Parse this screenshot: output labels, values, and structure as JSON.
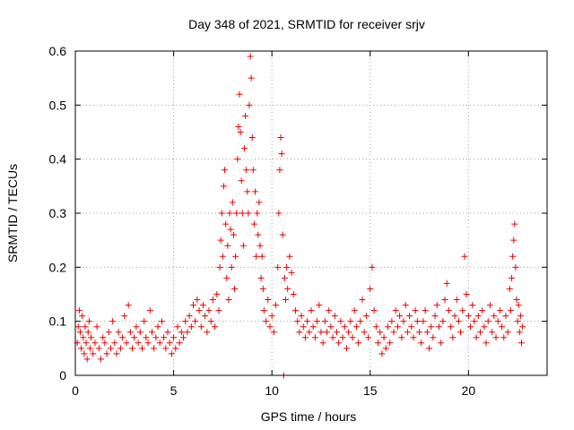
{
  "chart_data": {
    "type": "scatter",
    "title": "Day 348 of 2021, SRMTID for receiver srjv",
    "xlabel": "GPS time / hours",
    "ylabel": "SRMTID / TECUs",
    "xlim": [
      0,
      24
    ],
    "ylim": [
      0,
      0.6
    ],
    "xticks": [
      0,
      5,
      10,
      15,
      20
    ],
    "xtick_labels": [
      "0",
      "5",
      "10",
      "15",
      "20"
    ],
    "yticks": [
      0,
      0.1,
      0.2,
      0.3,
      0.4,
      0.5,
      0.6
    ],
    "ytick_labels": [
      "0",
      "0.1",
      "0.2",
      "0.3",
      "0.4",
      "0.5",
      "0.6"
    ],
    "grid": true,
    "marker": "plus",
    "series_color": "#ee0000",
    "series": [
      {
        "name": "srjv",
        "points": [
          [
            0.1,
            0.06
          ],
          [
            0.15,
            0.09
          ],
          [
            0.2,
            0.12
          ],
          [
            0.25,
            0.08
          ],
          [
            0.3,
            0.05
          ],
          [
            0.35,
            0.11
          ],
          [
            0.4,
            0.07
          ],
          [
            0.45,
            0.04
          ],
          [
            0.5,
            0.09
          ],
          [
            0.55,
            0.06
          ],
          [
            0.6,
            0.03
          ],
          [
            0.65,
            0.08
          ],
          [
            0.7,
            0.1
          ],
          [
            0.75,
            0.05
          ],
          [
            0.8,
            0.07
          ],
          [
            0.9,
            0.04
          ],
          [
            1.0,
            0.06
          ],
          [
            1.1,
            0.09
          ],
          [
            1.2,
            0.05
          ],
          [
            1.3,
            0.03
          ],
          [
            1.4,
            0.07
          ],
          [
            1.5,
            0.06
          ],
          [
            1.6,
            0.04
          ],
          [
            1.7,
            0.08
          ],
          [
            1.8,
            0.05
          ],
          [
            1.9,
            0.1
          ],
          [
            2.0,
            0.06
          ],
          [
            2.1,
            0.04
          ],
          [
            2.2,
            0.08
          ],
          [
            2.3,
            0.05
          ],
          [
            2.4,
            0.07
          ],
          [
            2.5,
            0.11
          ],
          [
            2.6,
            0.06
          ],
          [
            2.7,
            0.13
          ],
          [
            2.8,
            0.08
          ],
          [
            2.9,
            0.05
          ],
          [
            3.0,
            0.07
          ],
          [
            3.1,
            0.09
          ],
          [
            3.2,
            0.06
          ],
          [
            3.3,
            0.08
          ],
          [
            3.4,
            0.05
          ],
          [
            3.5,
            0.1
          ],
          [
            3.6,
            0.07
          ],
          [
            3.7,
            0.06
          ],
          [
            3.8,
            0.12
          ],
          [
            3.9,
            0.08
          ],
          [
            4.0,
            0.05
          ],
          [
            4.1,
            0.07
          ],
          [
            4.2,
            0.09
          ],
          [
            4.3,
            0.06
          ],
          [
            4.4,
            0.1
          ],
          [
            4.5,
            0.07
          ],
          [
            4.6,
            0.05
          ],
          [
            4.7,
            0.08
          ],
          [
            4.8,
            0.06
          ],
          [
            4.9,
            0.04
          ],
          [
            5.0,
            0.07
          ],
          [
            5.1,
            0.05
          ],
          [
            5.2,
            0.09
          ],
          [
            5.3,
            0.06
          ],
          [
            5.4,
            0.08
          ],
          [
            5.5,
            0.07
          ],
          [
            5.6,
            0.1
          ],
          [
            5.7,
            0.08
          ],
          [
            5.8,
            0.11
          ],
          [
            5.9,
            0.09
          ],
          [
            6.0,
            0.13
          ],
          [
            6.1,
            0.1
          ],
          [
            6.2,
            0.14
          ],
          [
            6.3,
            0.12
          ],
          [
            6.4,
            0.09
          ],
          [
            6.5,
            0.13
          ],
          [
            6.6,
            0.11
          ],
          [
            6.7,
            0.08
          ],
          [
            6.8,
            0.12
          ],
          [
            6.9,
            0.1
          ],
          [
            7.0,
            0.14
          ],
          [
            7.1,
            0.09
          ],
          [
            7.2,
            0.15
          ],
          [
            7.3,
            0.12
          ],
          [
            7.35,
            0.2
          ],
          [
            7.4,
            0.25
          ],
          [
            7.45,
            0.3
          ],
          [
            7.5,
            0.22
          ],
          [
            7.55,
            0.35
          ],
          [
            7.6,
            0.38
          ],
          [
            7.65,
            0.28
          ],
          [
            7.7,
            0.18
          ],
          [
            7.75,
            0.24
          ],
          [
            7.8,
            0.14
          ],
          [
            7.85,
            0.3
          ],
          [
            7.9,
            0.27
          ],
          [
            7.95,
            0.2
          ],
          [
            8.0,
            0.32
          ],
          [
            8.05,
            0.26
          ],
          [
            8.1,
            0.16
          ],
          [
            8.15,
            0.22
          ],
          [
            8.2,
            0.3
          ],
          [
            8.25,
            0.4
          ],
          [
            8.3,
            0.46
          ],
          [
            8.35,
            0.52
          ],
          [
            8.4,
            0.45
          ],
          [
            8.45,
            0.36
          ],
          [
            8.5,
            0.3
          ],
          [
            8.55,
            0.24
          ],
          [
            8.6,
            0.42
          ],
          [
            8.65,
            0.48
          ],
          [
            8.7,
            0.38
          ],
          [
            8.75,
            0.34
          ],
          [
            8.8,
            0.3
          ],
          [
            8.85,
            0.5
          ],
          [
            8.9,
            0.59
          ],
          [
            8.95,
            0.55
          ],
          [
            9.0,
            0.44
          ],
          [
            9.05,
            0.38
          ],
          [
            9.1,
            0.28
          ],
          [
            9.15,
            0.34
          ],
          [
            9.2,
            0.22
          ],
          [
            9.25,
            0.3
          ],
          [
            9.3,
            0.26
          ],
          [
            9.35,
            0.32
          ],
          [
            9.4,
            0.24
          ],
          [
            9.45,
            0.18
          ],
          [
            9.5,
            0.22
          ],
          [
            9.55,
            0.16
          ],
          [
            9.6,
            0.12
          ],
          [
            9.7,
            0.1
          ],
          [
            9.8,
            0.14
          ],
          [
            9.9,
            0.09
          ],
          [
            10.0,
            0.11
          ],
          [
            10.1,
            0.08
          ],
          [
            10.2,
            0.13
          ],
          [
            10.3,
            0.2
          ],
          [
            10.35,
            0.3
          ],
          [
            10.4,
            0.38
          ],
          [
            10.45,
            0.44
          ],
          [
            10.5,
            0.41
          ],
          [
            10.55,
            0.26
          ],
          [
            10.6,
            0.0
          ],
          [
            10.65,
            0.18
          ],
          [
            10.7,
            0.14
          ],
          [
            10.75,
            0.2
          ],
          [
            10.8,
            0.16
          ],
          [
            10.9,
            0.22
          ],
          [
            11.0,
            0.19
          ],
          [
            11.1,
            0.15
          ],
          [
            11.2,
            0.12
          ],
          [
            11.3,
            0.1
          ],
          [
            11.4,
            0.08
          ],
          [
            11.5,
            0.11
          ],
          [
            11.6,
            0.09
          ],
          [
            11.7,
            0.07
          ],
          [
            11.8,
            0.1
          ],
          [
            11.9,
            0.08
          ],
          [
            12.0,
            0.12
          ],
          [
            12.1,
            0.09
          ],
          [
            12.2,
            0.07
          ],
          [
            12.3,
            0.1
          ],
          [
            12.4,
            0.13
          ],
          [
            12.5,
            0.08
          ],
          [
            12.6,
            0.06
          ],
          [
            12.7,
            0.1
          ],
          [
            12.8,
            0.08
          ],
          [
            12.9,
            0.12
          ],
          [
            13.0,
            0.09
          ],
          [
            13.1,
            0.07
          ],
          [
            13.2,
            0.11
          ],
          [
            13.3,
            0.08
          ],
          [
            13.4,
            0.06
          ],
          [
            13.5,
            0.1
          ],
          [
            13.6,
            0.07
          ],
          [
            13.7,
            0.09
          ],
          [
            13.8,
            0.05
          ],
          [
            13.9,
            0.08
          ],
          [
            14.0,
            0.1
          ],
          [
            14.1,
            0.07
          ],
          [
            14.2,
            0.12
          ],
          [
            14.3,
            0.09
          ],
          [
            14.4,
            0.06
          ],
          [
            14.5,
            0.1
          ],
          [
            14.6,
            0.14
          ],
          [
            14.7,
            0.08
          ],
          [
            14.8,
            0.11
          ],
          [
            14.9,
            0.07
          ],
          [
            15.0,
            0.16
          ],
          [
            15.1,
            0.2
          ],
          [
            15.2,
            0.12
          ],
          [
            15.3,
            0.09
          ],
          [
            15.4,
            0.06
          ],
          [
            15.5,
            0.08
          ],
          [
            15.6,
            0.04
          ],
          [
            15.7,
            0.07
          ],
          [
            15.8,
            0.05
          ],
          [
            15.9,
            0.09
          ],
          [
            16.0,
            0.06
          ],
          [
            16.1,
            0.1
          ],
          [
            16.2,
            0.08
          ],
          [
            16.3,
            0.12
          ],
          [
            16.4,
            0.09
          ],
          [
            16.5,
            0.11
          ],
          [
            16.6,
            0.07
          ],
          [
            16.7,
            0.1
          ],
          [
            16.8,
            0.13
          ],
          [
            16.9,
            0.08
          ],
          [
            17.0,
            0.11
          ],
          [
            17.1,
            0.09
          ],
          [
            17.2,
            0.07
          ],
          [
            17.3,
            0.12
          ],
          [
            17.4,
            0.1
          ],
          [
            17.5,
            0.08
          ],
          [
            17.6,
            0.06
          ],
          [
            17.7,
            0.1
          ],
          [
            17.8,
            0.12
          ],
          [
            17.9,
            0.08
          ],
          [
            18.0,
            0.05
          ],
          [
            18.1,
            0.09
          ],
          [
            18.2,
            0.07
          ],
          [
            18.3,
            0.11
          ],
          [
            18.4,
            0.13
          ],
          [
            18.5,
            0.09
          ],
          [
            18.6,
            0.06
          ],
          [
            18.7,
            0.1
          ],
          [
            18.8,
            0.14
          ],
          [
            18.9,
            0.17
          ],
          [
            19.0,
            0.12
          ],
          [
            19.1,
            0.09
          ],
          [
            19.2,
            0.07
          ],
          [
            19.3,
            0.11
          ],
          [
            19.4,
            0.14
          ],
          [
            19.5,
            0.1
          ],
          [
            19.6,
            0.08
          ],
          [
            19.7,
            0.12
          ],
          [
            19.8,
            0.22
          ],
          [
            19.9,
            0.15
          ],
          [
            20.0,
            0.11
          ],
          [
            20.1,
            0.09
          ],
          [
            20.2,
            0.13
          ],
          [
            20.3,
            0.1
          ],
          [
            20.4,
            0.07
          ],
          [
            20.5,
            0.11
          ],
          [
            20.6,
            0.08
          ],
          [
            20.7,
            0.12
          ],
          [
            20.8,
            0.09
          ],
          [
            20.9,
            0.06
          ],
          [
            21.0,
            0.1
          ],
          [
            21.1,
            0.13
          ],
          [
            21.2,
            0.08
          ],
          [
            21.3,
            0.11
          ],
          [
            21.4,
            0.07
          ],
          [
            21.5,
            0.1
          ],
          [
            21.6,
            0.12
          ],
          [
            21.7,
            0.09
          ],
          [
            21.8,
            0.07
          ],
          [
            21.9,
            0.11
          ],
          [
            22.0,
            0.08
          ],
          [
            22.1,
            0.16
          ],
          [
            22.15,
            0.12
          ],
          [
            22.2,
            0.18
          ],
          [
            22.25,
            0.22
          ],
          [
            22.3,
            0.25
          ],
          [
            22.35,
            0.28
          ],
          [
            22.4,
            0.2
          ],
          [
            22.45,
            0.14
          ],
          [
            22.5,
            0.1
          ],
          [
            22.55,
            0.13
          ],
          [
            22.6,
            0.08
          ],
          [
            22.65,
            0.11
          ],
          [
            22.7,
            0.06
          ],
          [
            22.75,
            0.09
          ]
        ]
      }
    ]
  }
}
